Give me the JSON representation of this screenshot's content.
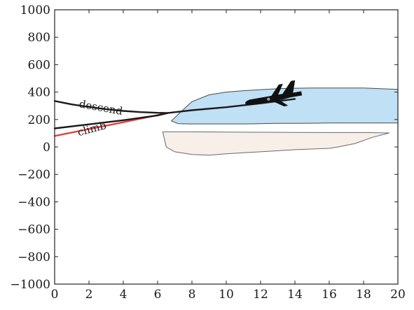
{
  "chart_data": {
    "type": "line",
    "title": "",
    "xlabel": "",
    "ylabel": "",
    "xlim": [
      0,
      20
    ],
    "ylim": [
      -1000,
      1000
    ],
    "xticks": [
      0,
      2,
      4,
      6,
      8,
      10,
      12,
      14,
      16,
      18,
      20
    ],
    "yticks": [
      1000,
      800,
      600,
      400,
      200,
      0,
      -200,
      -400,
      -600,
      -800,
      -1000
    ],
    "xtick_labels": [
      "0",
      "2",
      "4",
      "6",
      "8",
      "10",
      "12",
      "14",
      "16",
      "18",
      "20"
    ],
    "ytick_labels": [
      "1000",
      "800",
      "600",
      "400",
      "200",
      "0",
      "−200",
      "−400",
      "−600",
      "−800",
      "−1000"
    ],
    "grid": false,
    "series": [
      {
        "name": "descend",
        "color": "#1a1a1a",
        "x": [
          0,
          1,
          2,
          3,
          4,
          5,
          6,
          6.6
        ],
        "y": [
          335,
          310,
          292,
          275,
          263,
          254,
          249,
          248
        ]
      },
      {
        "name": "climb",
        "color": "#e04040",
        "x": [
          0,
          2,
          4,
          6,
          6.6
        ],
        "y": [
          80,
          130,
          180,
          232,
          248
        ]
      },
      {
        "name": "",
        "color": "#1a1a1a",
        "x": [
          0,
          2,
          4,
          6,
          6.6,
          8,
          10,
          12,
          14
        ],
        "y": [
          135,
          165,
          195,
          230,
          248,
          268,
          290,
          318,
          350
        ]
      }
    ],
    "regions": [
      {
        "fill": "#bfe0f5",
        "stroke": "#4a4a4a",
        "x": [
          6.8,
          7.3,
          8.0,
          9.0,
          10.0,
          11.0,
          12.0,
          13.0,
          14.0,
          15.0,
          16.0,
          17.0,
          18.0,
          19.0,
          20.0,
          20.0,
          19.0,
          18.0,
          17.0,
          16.0,
          15.0,
          14.0,
          13.0,
          12.0,
          11.0,
          10.0,
          9.0,
          8.0,
          7.2,
          6.8
        ],
        "y": [
          190,
          250,
          330,
          380,
          400,
          410,
          418,
          425,
          428,
          430,
          430,
          430,
          430,
          425,
          420,
          175,
          175,
          175,
          175,
          175,
          173,
          172,
          172,
          170,
          168,
          168,
          168,
          168,
          170,
          190
        ]
      },
      {
        "fill": "#f7efe8",
        "stroke": "#6a6a6a",
        "x": [
          6.3,
          7.0,
          8.0,
          10.0,
          12.0,
          14.0,
          16.0,
          18.0,
          19.5,
          18.5,
          17.5,
          16.5,
          16.0,
          14.0,
          12.0,
          10.0,
          9.0,
          8.0,
          7.0,
          6.5,
          6.3
        ],
        "y": [
          110,
          110,
          110,
          108,
          107,
          106,
          105,
          105,
          102,
          70,
          25,
          0,
          -10,
          -20,
          -35,
          -50,
          -60,
          -55,
          -35,
          0,
          110
        ]
      }
    ],
    "annotations": [
      {
        "text": "descend",
        "x": 1.4,
        "y": 290,
        "rotate": 10
      },
      {
        "text": "climb",
        "x": 1.4,
        "y": 80,
        "rotate": -15
      }
    ],
    "aircraft": {
      "x": 12.3,
      "y": 345
    }
  }
}
